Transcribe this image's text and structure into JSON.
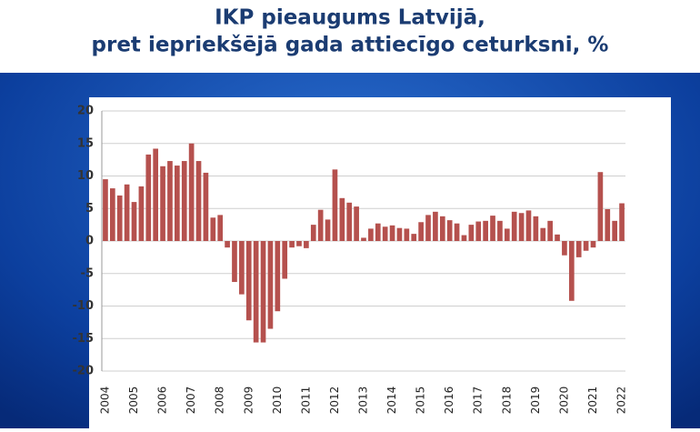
{
  "chart_data": {
    "type": "bar",
    "title": [
      "IKP pieaugums Latvijā,",
      "pret iepriekšējā gada attiecīgo ceturksni, %"
    ],
    "categories": [
      "2004",
      null,
      null,
      null,
      "2005",
      null,
      null,
      null,
      "2006",
      null,
      null,
      null,
      "2007",
      null,
      null,
      null,
      "2008",
      null,
      null,
      null,
      "2009",
      null,
      null,
      null,
      "2010",
      null,
      null,
      null,
      "2011",
      null,
      null,
      null,
      "2012",
      null,
      null,
      null,
      "2013",
      null,
      null,
      null,
      "2014",
      null,
      null,
      null,
      "2015",
      null,
      null,
      null,
      "2016",
      null,
      null,
      null,
      "2017",
      null,
      null,
      null,
      "2018",
      null,
      null,
      null,
      "2019",
      null,
      null,
      null,
      "2020",
      null,
      null,
      null,
      "2021",
      null,
      null,
      null,
      "2022"
    ],
    "values": [
      9.5,
      8.1,
      7.0,
      8.7,
      6.0,
      8.4,
      13.3,
      14.2,
      11.5,
      12.3,
      11.6,
      12.3,
      15.0,
      12.3,
      10.5,
      3.6,
      4.0,
      -1.0,
      -6.3,
      -8.2,
      -12.2,
      -15.6,
      -15.6,
      -13.5,
      -10.8,
      -5.8,
      -1.0,
      -0.8,
      -1.1,
      2.5,
      4.8,
      3.3,
      11.0,
      6.6,
      5.9,
      5.3,
      0.5,
      1.9,
      2.7,
      2.2,
      2.4,
      2.0,
      1.9,
      1.1,
      2.9,
      4.0,
      4.5,
      3.8,
      3.2,
      2.7,
      0.9,
      2.5,
      3.0,
      3.1,
      3.9,
      3.1,
      1.9,
      4.5,
      4.3,
      4.7,
      3.8,
      2.0,
      3.1,
      1.0,
      -2.2,
      -9.2,
      -2.5,
      -1.5,
      -1.0,
      10.6,
      4.9,
      3.1,
      5.8
    ],
    "color": "#b5514e",
    "ylim": [
      -20,
      20
    ],
    "yticks": [
      -20,
      -15,
      -10,
      -5,
      0,
      5,
      10,
      15,
      20
    ],
    "grid": true
  }
}
